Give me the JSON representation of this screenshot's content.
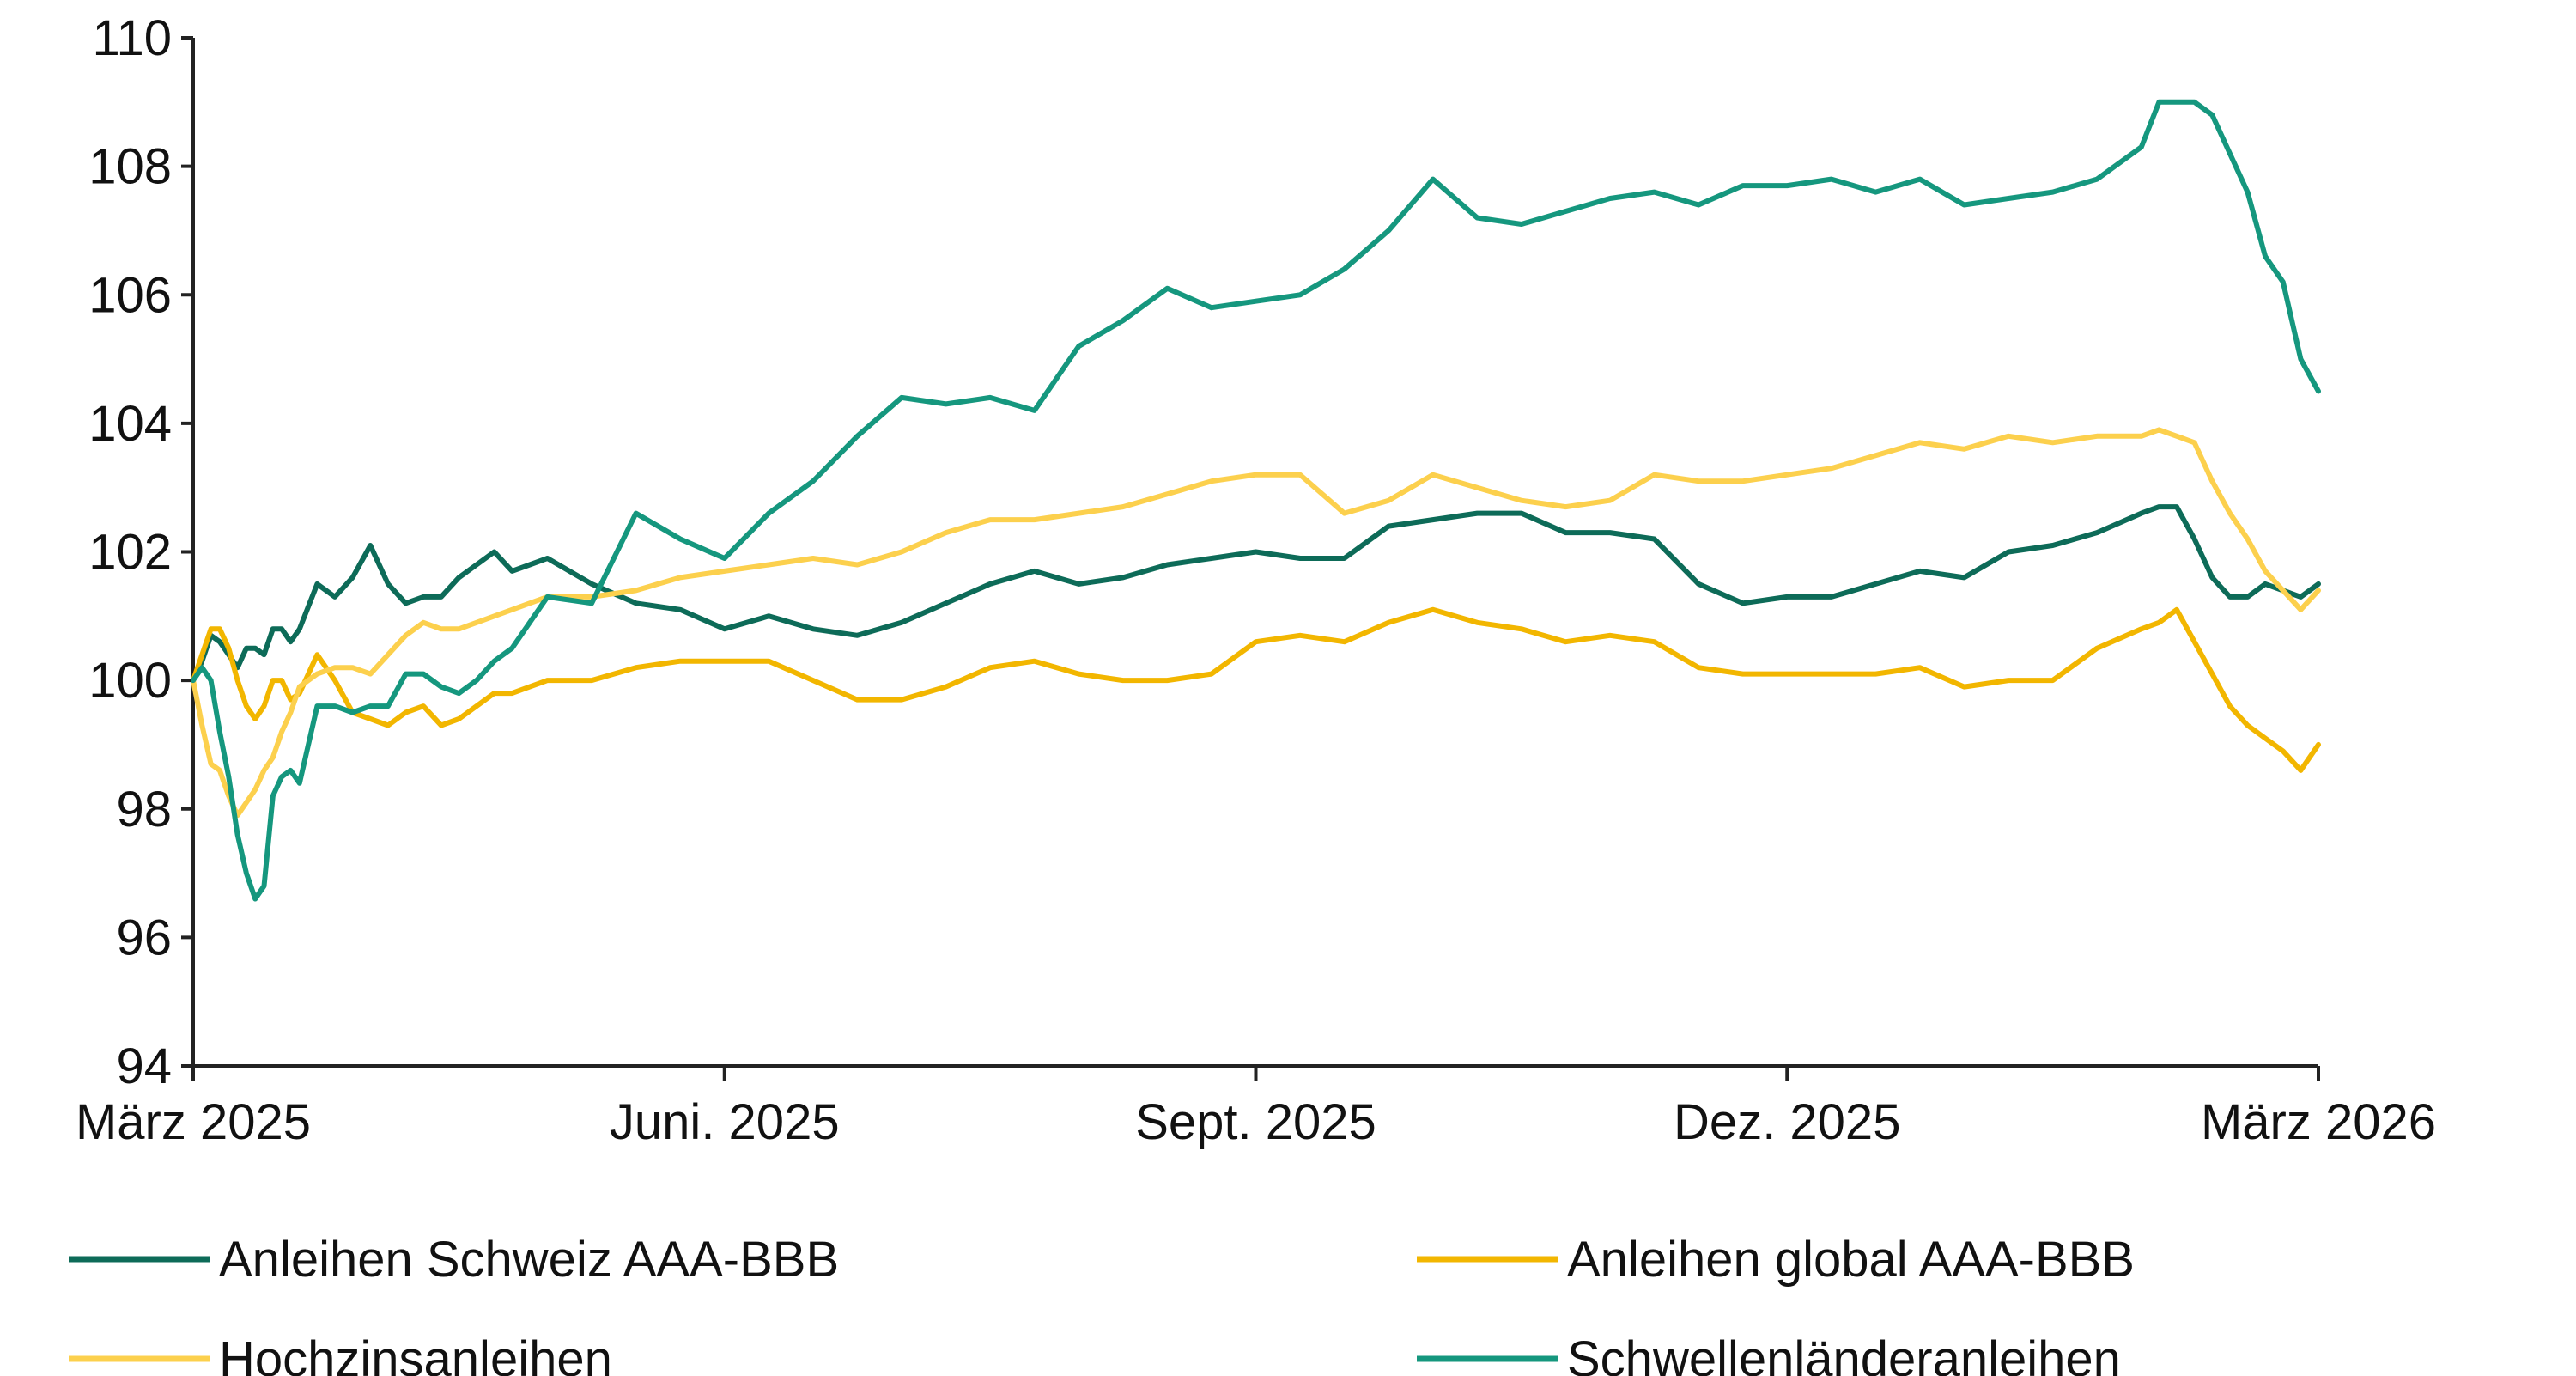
{
  "chart_data": {
    "type": "line",
    "title": "",
    "xlabel": "",
    "ylabel": "",
    "ylim": [
      94,
      110
    ],
    "yticks": [
      94,
      96,
      98,
      100,
      102,
      104,
      106,
      108,
      110
    ],
    "xlim": [
      0,
      12
    ],
    "xticks": [
      {
        "x": 0,
        "label": "März 2025"
      },
      {
        "x": 3,
        "label": "Juni. 2025"
      },
      {
        "x": 6,
        "label": "Sept. 2025"
      },
      {
        "x": 9,
        "label": "Dez. 2025"
      },
      {
        "x": 12,
        "label": "März 2026"
      }
    ],
    "grid": false,
    "legend_position": "bottom",
    "x": [
      0,
      0.05,
      0.1,
      0.15,
      0.2,
      0.25,
      0.3,
      0.35,
      0.4,
      0.45,
      0.5,
      0.55,
      0.6,
      0.7,
      0.8,
      0.9,
      1.0,
      1.1,
      1.2,
      1.3,
      1.4,
      1.5,
      1.6,
      1.7,
      1.8,
      1.9,
      2.0,
      2.25,
      2.5,
      2.75,
      3.0,
      3.25,
      3.5,
      3.75,
      4.0,
      4.25,
      4.5,
      4.75,
      5.0,
      5.25,
      5.5,
      5.75,
      6.0,
      6.25,
      6.5,
      6.75,
      7.0,
      7.25,
      7.5,
      7.75,
      8.0,
      8.25,
      8.5,
      8.75,
      9.0,
      9.25,
      9.5,
      9.75,
      10.0,
      10.25,
      10.5,
      10.75,
      11.0,
      11.1,
      11.2,
      11.3,
      11.4,
      11.5,
      11.6,
      11.7,
      11.8,
      11.9,
      12.0
    ],
    "series": [
      {
        "name": "Anleihen Schweiz AAA-BBB",
        "color": "#0d6b58",
        "values": [
          100.0,
          100.3,
          100.7,
          100.6,
          100.4,
          100.2,
          100.5,
          100.5,
          100.4,
          100.8,
          100.8,
          100.6,
          100.8,
          101.5,
          101.3,
          101.6,
          102.1,
          101.5,
          101.2,
          101.3,
          101.3,
          101.6,
          101.8,
          102.0,
          101.7,
          101.8,
          101.9,
          101.5,
          101.2,
          101.1,
          100.8,
          101.0,
          100.8,
          100.7,
          100.9,
          101.2,
          101.5,
          101.7,
          101.5,
          101.6,
          101.8,
          101.9,
          102.0,
          101.9,
          101.9,
          102.4,
          102.5,
          102.6,
          102.6,
          102.3,
          102.3,
          102.2,
          101.5,
          101.2,
          101.3,
          101.3,
          101.5,
          101.7,
          101.6,
          102.0,
          102.1,
          102.3,
          102.6,
          102.7,
          102.7,
          102.2,
          101.6,
          101.3,
          101.3,
          101.5,
          101.4,
          101.3,
          101.5
        ]
      },
      {
        "name": "Anleihen global AAA-BBB",
        "color": "#f2b600",
        "values": [
          100.0,
          100.4,
          100.8,
          100.8,
          100.5,
          100.0,
          99.6,
          99.4,
          99.6,
          100.0,
          100.0,
          99.7,
          99.8,
          100.4,
          100.0,
          99.5,
          99.4,
          99.3,
          99.5,
          99.6,
          99.3,
          99.4,
          99.6,
          99.8,
          99.8,
          99.9,
          100.0,
          100.0,
          100.2,
          100.3,
          100.3,
          100.3,
          100.0,
          99.7,
          99.7,
          99.9,
          100.2,
          100.3,
          100.1,
          100.0,
          100.0,
          100.1,
          100.6,
          100.7,
          100.6,
          100.9,
          101.1,
          100.9,
          100.8,
          100.6,
          100.7,
          100.6,
          100.2,
          100.1,
          100.1,
          100.1,
          100.1,
          100.2,
          99.9,
          100.0,
          100.0,
          100.5,
          100.8,
          100.9,
          101.1,
          100.6,
          100.1,
          99.6,
          99.3,
          99.1,
          98.9,
          98.6,
          99.0
        ]
      },
      {
        "name": "Hochzinsanleihen",
        "color": "#fcd04d",
        "values": [
          100.0,
          99.3,
          98.7,
          98.6,
          98.2,
          97.9,
          98.1,
          98.3,
          98.6,
          98.8,
          99.2,
          99.5,
          99.9,
          100.1,
          100.2,
          100.2,
          100.1,
          100.4,
          100.7,
          100.9,
          100.8,
          100.8,
          100.9,
          101.0,
          101.1,
          101.2,
          101.3,
          101.3,
          101.4,
          101.6,
          101.7,
          101.8,
          101.9,
          101.8,
          102.0,
          102.3,
          102.5,
          102.5,
          102.6,
          102.7,
          102.9,
          103.1,
          103.2,
          103.2,
          102.6,
          102.8,
          103.2,
          103.0,
          102.8,
          102.7,
          102.8,
          103.2,
          103.1,
          103.1,
          103.2,
          103.3,
          103.5,
          103.7,
          103.6,
          103.8,
          103.7,
          103.8,
          103.8,
          103.9,
          103.8,
          103.7,
          103.1,
          102.6,
          102.2,
          101.7,
          101.4,
          101.1,
          101.4
        ]
      },
      {
        "name": "Schwellenländeranleihen",
        "color": "#15977e",
        "values": [
          100.0,
          100.2,
          100.0,
          99.2,
          98.5,
          97.6,
          97.0,
          96.6,
          96.8,
          98.2,
          98.5,
          98.6,
          98.4,
          99.6,
          99.6,
          99.5,
          99.6,
          99.6,
          100.1,
          100.1,
          99.9,
          99.8,
          100.0,
          100.3,
          100.5,
          100.9,
          101.3,
          101.2,
          102.6,
          102.2,
          101.9,
          102.6,
          103.1,
          103.8,
          104.4,
          104.3,
          104.4,
          104.2,
          105.2,
          105.6,
          106.1,
          105.8,
          105.9,
          106.0,
          106.4,
          107.0,
          107.8,
          107.2,
          107.1,
          107.3,
          107.5,
          107.6,
          107.4,
          107.7,
          107.7,
          107.8,
          107.6,
          107.8,
          107.4,
          107.5,
          107.6,
          107.8,
          108.3,
          109.0,
          109.0,
          109.0,
          108.8,
          108.2,
          107.6,
          106.6,
          106.2,
          105.0,
          104.5
        ]
      }
    ]
  }
}
